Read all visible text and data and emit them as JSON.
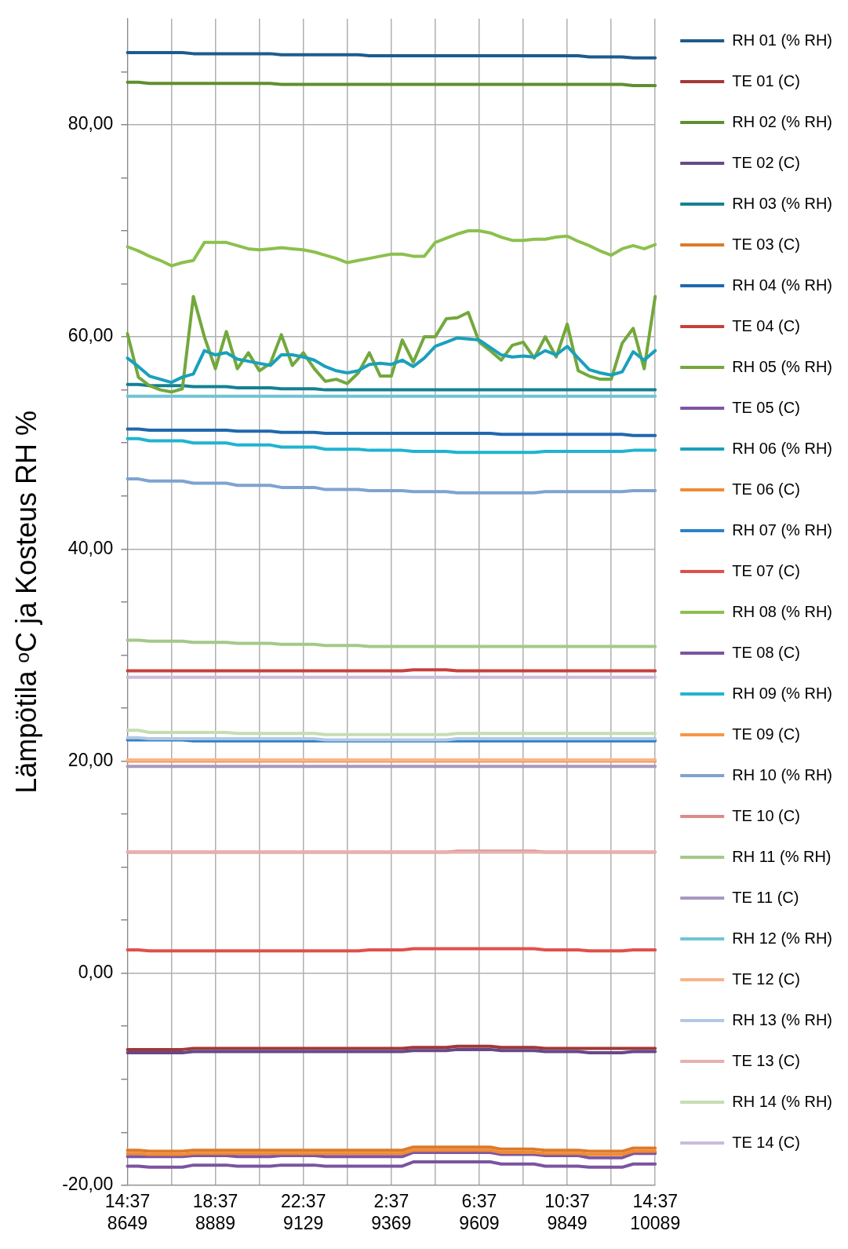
{
  "chart_data": {
    "type": "line",
    "ylabel": "Lämpötila ᵒC ja Kosteus RH %",
    "legend": "right",
    "grid": true,
    "categories": [
      "14:37\n8649",
      null,
      null,
      null,
      null,
      null,
      null,
      null,
      "18:37\n8889",
      null,
      null,
      null,
      null,
      null,
      null,
      null,
      "22:37\n9129",
      null,
      null,
      null,
      null,
      null,
      null,
      null,
      "2:37\n9369",
      null,
      null,
      null,
      null,
      null,
      null,
      null,
      "6:37\n9609",
      null,
      null,
      null,
      null,
      null,
      null,
      null,
      "10:37\n9849",
      null,
      null,
      null,
      null,
      null,
      null,
      null,
      "14:37\n10089"
    ],
    "ylim": [
      -20,
      90
    ],
    "yticks": [
      {
        "value": -20,
        "label": "-20,00"
      },
      {
        "value": -15,
        "label": null
      },
      {
        "value": -10,
        "label": null
      },
      {
        "value": -5,
        "label": null
      },
      {
        "value": 0,
        "label": "0,00"
      },
      {
        "value": 5,
        "label": null
      },
      {
        "value": 10,
        "label": null
      },
      {
        "value": 15,
        "label": null
      },
      {
        "value": 20,
        "label": "20,00"
      },
      {
        "value": 25,
        "label": null
      },
      {
        "value": 30,
        "label": null
      },
      {
        "value": 35,
        "label": null
      },
      {
        "value": 40,
        "label": "40,00"
      },
      {
        "value": 45,
        "label": null
      },
      {
        "value": 50,
        "label": null
      },
      {
        "value": 55,
        "label": null
      },
      {
        "value": 60,
        "label": "60,00"
      },
      {
        "value": 65,
        "label": null
      },
      {
        "value": 70,
        "label": null
      },
      {
        "value": 75,
        "label": null
      },
      {
        "value": 80,
        "label": "80,00"
      },
      {
        "value": 85,
        "label": null
      }
    ],
    "series": [
      {
        "name": "RH 01 (% RH)",
        "color": "#1f5b8c",
        "values": [
          86.8,
          86.8,
          86.8,
          86.8,
          86.8,
          86.8,
          86.7,
          86.7,
          86.7,
          86.7,
          86.7,
          86.7,
          86.7,
          86.7,
          86.6,
          86.6,
          86.6,
          86.6,
          86.6,
          86.6,
          86.6,
          86.6,
          86.5,
          86.5,
          86.5,
          86.5,
          86.5,
          86.5,
          86.5,
          86.5,
          86.5,
          86.5,
          86.5,
          86.5,
          86.5,
          86.5,
          86.5,
          86.5,
          86.5,
          86.5,
          86.5,
          86.5,
          86.4,
          86.4,
          86.4,
          86.4,
          86.3,
          86.3,
          86.3
        ]
      },
      {
        "name": "TE 01 (C)",
        "color": "#a33838",
        "values": [
          -7.2,
          -7.2,
          -7.2,
          -7.2,
          -7.2,
          -7.2,
          -7.1,
          -7.1,
          -7.1,
          -7.1,
          -7.1,
          -7.1,
          -7.1,
          -7.1,
          -7.1,
          -7.1,
          -7.1,
          -7.1,
          -7.1,
          -7.1,
          -7.1,
          -7.1,
          -7.1,
          -7.1,
          -7.1,
          -7.1,
          -7.0,
          -7.0,
          -7.0,
          -7.0,
          -6.9,
          -6.9,
          -6.9,
          -6.9,
          -7.0,
          -7.0,
          -7.0,
          -7.0,
          -7.1,
          -7.1,
          -7.1,
          -7.1,
          -7.1,
          -7.1,
          -7.1,
          -7.1,
          -7.1,
          -7.1,
          -7.1
        ]
      },
      {
        "name": "RH 02 (% RH)",
        "color": "#5f8f2f",
        "values": [
          84.0,
          84.0,
          83.9,
          83.9,
          83.9,
          83.9,
          83.9,
          83.9,
          83.9,
          83.9,
          83.9,
          83.9,
          83.9,
          83.9,
          83.8,
          83.8,
          83.8,
          83.8,
          83.8,
          83.8,
          83.8,
          83.8,
          83.8,
          83.8,
          83.8,
          83.8,
          83.8,
          83.8,
          83.8,
          83.8,
          83.8,
          83.8,
          83.8,
          83.8,
          83.8,
          83.8,
          83.8,
          83.8,
          83.8,
          83.8,
          83.8,
          83.8,
          83.8,
          83.8,
          83.8,
          83.8,
          83.7,
          83.7,
          83.7
        ]
      },
      {
        "name": "TE 02 (C)",
        "color": "#65498a",
        "values": [
          -7.5,
          -7.5,
          -7.5,
          -7.5,
          -7.5,
          -7.5,
          -7.4,
          -7.4,
          -7.4,
          -7.4,
          -7.4,
          -7.4,
          -7.4,
          -7.4,
          -7.4,
          -7.4,
          -7.4,
          -7.4,
          -7.4,
          -7.4,
          -7.4,
          -7.4,
          -7.4,
          -7.4,
          -7.4,
          -7.4,
          -7.3,
          -7.3,
          -7.3,
          -7.3,
          -7.2,
          -7.2,
          -7.2,
          -7.2,
          -7.3,
          -7.3,
          -7.3,
          -7.3,
          -7.4,
          -7.4,
          -7.4,
          -7.4,
          -7.5,
          -7.5,
          -7.5,
          -7.5,
          -7.4,
          -7.4,
          -7.4
        ]
      },
      {
        "name": "RH 03 (% RH)",
        "color": "#138192",
        "values": [
          55.5,
          55.5,
          55.4,
          55.4,
          55.4,
          55.4,
          55.3,
          55.3,
          55.3,
          55.3,
          55.2,
          55.2,
          55.2,
          55.2,
          55.1,
          55.1,
          55.1,
          55.1,
          55.0,
          55.0,
          55.0,
          55.0,
          55.0,
          55.0,
          55.0,
          55.0,
          55.0,
          55.0,
          55.0,
          55.0,
          55.0,
          55.0,
          55.0,
          55.0,
          55.0,
          55.0,
          55.0,
          55.0,
          55.0,
          55.0,
          55.0,
          55.0,
          55.0,
          55.0,
          55.0,
          55.0,
          55.0,
          55.0,
          55.0
        ]
      },
      {
        "name": "TE 03 (C)",
        "color": "#dd7a2a",
        "values": [
          -16.7,
          -16.7,
          -16.8,
          -16.8,
          -16.8,
          -16.8,
          -16.7,
          -16.7,
          -16.7,
          -16.7,
          -16.7,
          -16.7,
          -16.7,
          -16.7,
          -16.7,
          -16.7,
          -16.7,
          -16.7,
          -16.7,
          -16.7,
          -16.7,
          -16.7,
          -16.7,
          -16.7,
          -16.7,
          -16.7,
          -16.4,
          -16.4,
          -16.4,
          -16.4,
          -16.4,
          -16.4,
          -16.4,
          -16.4,
          -16.6,
          -16.6,
          -16.6,
          -16.6,
          -16.7,
          -16.7,
          -16.7,
          -16.7,
          -16.8,
          -16.8,
          -16.8,
          -16.8,
          -16.5,
          -16.5,
          -16.5
        ]
      },
      {
        "name": "RH 04 (% RH)",
        "color": "#2068ad",
        "values": [
          51.3,
          51.3,
          51.2,
          51.2,
          51.2,
          51.2,
          51.2,
          51.2,
          51.2,
          51.2,
          51.1,
          51.1,
          51.1,
          51.1,
          51.0,
          51.0,
          51.0,
          51.0,
          50.9,
          50.9,
          50.9,
          50.9,
          50.9,
          50.9,
          50.9,
          50.9,
          50.9,
          50.9,
          50.9,
          50.9,
          50.9,
          50.9,
          50.9,
          50.9,
          50.8,
          50.8,
          50.8,
          50.8,
          50.8,
          50.8,
          50.8,
          50.8,
          50.8,
          50.8,
          50.8,
          50.8,
          50.7,
          50.7,
          50.7
        ]
      },
      {
        "name": "TE 04 (C)",
        "color": "#c8403c",
        "values": [
          28.5,
          28.5,
          28.5,
          28.5,
          28.5,
          28.5,
          28.5,
          28.5,
          28.5,
          28.5,
          28.5,
          28.5,
          28.5,
          28.5,
          28.5,
          28.5,
          28.5,
          28.5,
          28.5,
          28.5,
          28.5,
          28.5,
          28.5,
          28.5,
          28.5,
          28.5,
          28.6,
          28.6,
          28.6,
          28.6,
          28.5,
          28.5,
          28.5,
          28.5,
          28.5,
          28.5,
          28.5,
          28.5,
          28.5,
          28.5,
          28.5,
          28.5,
          28.5,
          28.5,
          28.5,
          28.5,
          28.5,
          28.5,
          28.5
        ]
      },
      {
        "name": "RH 05 (% RH)",
        "color": "#72a83c",
        "values": [
          60.3,
          56.2,
          55.4,
          55.0,
          54.8,
          55.1,
          63.8,
          60.0,
          57.0,
          60.5,
          57.0,
          58.5,
          56.8,
          57.5,
          60.2,
          57.3,
          58.5,
          57.0,
          55.8,
          56.0,
          55.6,
          56.6,
          58.5,
          56.3,
          56.3,
          59.7,
          57.6,
          60.0,
          60.0,
          61.7,
          61.8,
          62.3,
          59.5,
          58.7,
          57.8,
          59.2,
          59.5,
          58.0,
          60.0,
          58.1,
          61.2,
          56.8,
          56.3,
          56.0,
          56.0,
          59.4,
          60.8,
          57.0,
          63.8
        ]
      },
      {
        "name": "TE 05 (C)",
        "color": "#7e55a3",
        "values": [
          -17.3,
          -17.3,
          -17.3,
          -17.3,
          -17.3,
          -17.3,
          -17.2,
          -17.2,
          -17.2,
          -17.2,
          -17.3,
          -17.3,
          -17.3,
          -17.3,
          -17.2,
          -17.2,
          -17.2,
          -17.2,
          -17.3,
          -17.3,
          -17.3,
          -17.3,
          -17.3,
          -17.3,
          -17.3,
          -17.3,
          -16.9,
          -16.9,
          -16.9,
          -16.9,
          -16.9,
          -16.9,
          -16.9,
          -16.9,
          -17.1,
          -17.1,
          -17.1,
          -17.1,
          -17.2,
          -17.2,
          -17.2,
          -17.2,
          -17.4,
          -17.4,
          -17.4,
          -17.4,
          -17.0,
          -17.0,
          -17.0
        ]
      },
      {
        "name": "RH 06 (% RH)",
        "color": "#1aa0bb",
        "values": [
          58.0,
          57.2,
          56.3,
          56.0,
          55.7,
          56.2,
          56.5,
          58.7,
          58.3,
          58.5,
          57.9,
          57.7,
          57.5,
          57.3,
          58.3,
          58.3,
          58.1,
          57.8,
          57.2,
          56.8,
          56.6,
          56.8,
          57.4,
          57.5,
          57.4,
          57.8,
          57.2,
          58.0,
          59.1,
          59.5,
          59.9,
          59.8,
          59.7,
          59.0,
          58.3,
          58.1,
          58.2,
          58.1,
          58.7,
          58.3,
          59.1,
          58.0,
          56.9,
          56.6,
          56.4,
          56.7,
          58.6,
          57.8,
          58.7
        ]
      },
      {
        "name": "TE 06 (C)",
        "color": "#f08a33",
        "values": [
          -17.0,
          -17.0,
          -17.1,
          -17.1,
          -17.1,
          -17.1,
          -17.0,
          -17.0,
          -17.0,
          -17.0,
          -17.0,
          -17.0,
          -17.0,
          -17.0,
          -17.0,
          -17.0,
          -17.0,
          -17.0,
          -17.0,
          -17.0,
          -17.0,
          -17.0,
          -17.0,
          -17.0,
          -17.0,
          -17.0,
          -16.7,
          -16.7,
          -16.7,
          -16.7,
          -16.7,
          -16.7,
          -16.7,
          -16.7,
          -16.9,
          -16.9,
          -16.9,
          -16.9,
          -17.0,
          -17.0,
          -17.0,
          -17.0,
          -17.1,
          -17.1,
          -17.1,
          -17.1,
          -16.8,
          -16.8,
          -16.8
        ]
      },
      {
        "name": "RH 07 (% RH)",
        "color": "#2c82c9",
        "values": [
          22.0,
          22.0,
          22.0,
          22.0,
          22.0,
          22.0,
          21.9,
          21.9,
          21.9,
          21.9,
          21.9,
          21.9,
          21.9,
          21.9,
          21.9,
          21.9,
          21.9,
          21.9,
          21.9,
          21.9,
          21.9,
          21.9,
          21.9,
          21.9,
          21.9,
          21.9,
          21.9,
          21.9,
          21.9,
          21.9,
          21.9,
          21.9,
          21.9,
          21.9,
          21.9,
          21.9,
          21.9,
          21.9,
          21.9,
          21.9,
          21.9,
          21.9,
          21.9,
          21.9,
          21.9,
          21.9,
          21.9,
          21.9,
          21.9
        ]
      },
      {
        "name": "TE 07 (C)",
        "color": "#e0504a",
        "values": [
          2.2,
          2.2,
          2.1,
          2.1,
          2.1,
          2.1,
          2.1,
          2.1,
          2.1,
          2.1,
          2.1,
          2.1,
          2.1,
          2.1,
          2.1,
          2.1,
          2.1,
          2.1,
          2.1,
          2.1,
          2.1,
          2.1,
          2.2,
          2.2,
          2.2,
          2.2,
          2.3,
          2.3,
          2.3,
          2.3,
          2.3,
          2.3,
          2.3,
          2.3,
          2.3,
          2.3,
          2.3,
          2.3,
          2.2,
          2.2,
          2.2,
          2.2,
          2.1,
          2.1,
          2.1,
          2.1,
          2.2,
          2.2,
          2.2
        ]
      },
      {
        "name": "RH 08 (% RH)",
        "color": "#8cc04d",
        "values": [
          68.5,
          68.1,
          67.6,
          67.2,
          66.7,
          67.0,
          67.2,
          68.9,
          68.9,
          68.9,
          68.6,
          68.3,
          68.2,
          68.3,
          68.4,
          68.3,
          68.2,
          68.0,
          67.7,
          67.4,
          67.0,
          67.2,
          67.4,
          67.6,
          67.8,
          67.8,
          67.6,
          67.6,
          68.9,
          69.3,
          69.7,
          70.0,
          70.0,
          69.8,
          69.4,
          69.1,
          69.1,
          69.2,
          69.2,
          69.4,
          69.5,
          69.0,
          68.6,
          68.1,
          67.7,
          68.3,
          68.6,
          68.3,
          68.7
        ]
      },
      {
        "name": "TE 08 (C)",
        "color": "#7b54a0",
        "values": [
          -18.2,
          -18.2,
          -18.3,
          -18.3,
          -18.3,
          -18.3,
          -18.1,
          -18.1,
          -18.1,
          -18.1,
          -18.2,
          -18.2,
          -18.2,
          -18.2,
          -18.1,
          -18.1,
          -18.1,
          -18.1,
          -18.2,
          -18.2,
          -18.2,
          -18.2,
          -18.2,
          -18.2,
          -18.2,
          -18.2,
          -17.8,
          -17.8,
          -17.8,
          -17.8,
          -17.8,
          -17.8,
          -17.8,
          -17.8,
          -18.0,
          -18.0,
          -18.0,
          -18.0,
          -18.2,
          -18.2,
          -18.2,
          -18.2,
          -18.3,
          -18.3,
          -18.3,
          -18.3,
          -18.0,
          -18.0,
          -18.0
        ]
      },
      {
        "name": "RH 09 (% RH)",
        "color": "#1fb4d0",
        "values": [
          50.4,
          50.4,
          50.2,
          50.2,
          50.2,
          50.2,
          50.0,
          50.0,
          50.0,
          50.0,
          49.8,
          49.8,
          49.8,
          49.8,
          49.6,
          49.6,
          49.6,
          49.6,
          49.4,
          49.4,
          49.4,
          49.4,
          49.3,
          49.3,
          49.3,
          49.3,
          49.2,
          49.2,
          49.2,
          49.2,
          49.1,
          49.1,
          49.1,
          49.1,
          49.1,
          49.1,
          49.1,
          49.1,
          49.2,
          49.2,
          49.2,
          49.2,
          49.2,
          49.2,
          49.2,
          49.2,
          49.3,
          49.3,
          49.3
        ]
      },
      {
        "name": "TE 09 (C)",
        "color": "#f79646",
        "values": [
          20.0,
          20.0,
          20.0,
          20.0,
          20.0,
          20.0,
          20.0,
          20.0,
          20.0,
          20.0,
          20.0,
          20.0,
          20.0,
          20.0,
          20.0,
          20.0,
          20.0,
          20.0,
          20.0,
          20.0,
          20.0,
          20.0,
          20.0,
          20.0,
          20.0,
          20.0,
          20.0,
          20.0,
          20.0,
          20.0,
          20.0,
          20.0,
          20.0,
          20.0,
          20.0,
          20.0,
          20.0,
          20.0,
          20.0,
          20.0,
          20.0,
          20.0,
          20.0,
          20.0,
          20.0,
          20.0,
          20.0,
          20.0,
          20.0
        ]
      },
      {
        "name": "RH 10 (% RH)",
        "color": "#7ea3d0",
        "values": [
          46.6,
          46.6,
          46.4,
          46.4,
          46.4,
          46.4,
          46.2,
          46.2,
          46.2,
          46.2,
          46.0,
          46.0,
          46.0,
          46.0,
          45.8,
          45.8,
          45.8,
          45.8,
          45.6,
          45.6,
          45.6,
          45.6,
          45.5,
          45.5,
          45.5,
          45.5,
          45.4,
          45.4,
          45.4,
          45.4,
          45.3,
          45.3,
          45.3,
          45.3,
          45.3,
          45.3,
          45.3,
          45.3,
          45.4,
          45.4,
          45.4,
          45.4,
          45.4,
          45.4,
          45.4,
          45.4,
          45.5,
          45.5,
          45.5
        ]
      },
      {
        "name": "TE 10 (C)",
        "color": "#de8a8a",
        "values": [
          11.4,
          11.4,
          11.4,
          11.4,
          11.4,
          11.4,
          11.4,
          11.4,
          11.4,
          11.4,
          11.4,
          11.4,
          11.4,
          11.4,
          11.4,
          11.4,
          11.4,
          11.4,
          11.4,
          11.4,
          11.4,
          11.4,
          11.4,
          11.4,
          11.4,
          11.4,
          11.4,
          11.4,
          11.4,
          11.4,
          11.5,
          11.5,
          11.5,
          11.5,
          11.5,
          11.5,
          11.5,
          11.5,
          11.4,
          11.4,
          11.4,
          11.4,
          11.4,
          11.4,
          11.4,
          11.4,
          11.4,
          11.4,
          11.4
        ]
      },
      {
        "name": "RH 11 (% RH)",
        "color": "#a3c98a",
        "values": [
          31.4,
          31.4,
          31.3,
          31.3,
          31.3,
          31.3,
          31.2,
          31.2,
          31.2,
          31.2,
          31.1,
          31.1,
          31.1,
          31.1,
          31.0,
          31.0,
          31.0,
          31.0,
          30.9,
          30.9,
          30.9,
          30.9,
          30.8,
          30.8,
          30.8,
          30.8,
          30.8,
          30.8,
          30.8,
          30.8,
          30.8,
          30.8,
          30.8,
          30.8,
          30.8,
          30.8,
          30.8,
          30.8,
          30.8,
          30.8,
          30.8,
          30.8,
          30.8,
          30.8,
          30.8,
          30.8,
          30.8,
          30.8,
          30.8
        ]
      },
      {
        "name": "TE 11 (C)",
        "color": "#a898c2",
        "values": [
          19.5,
          19.5,
          19.5,
          19.5,
          19.5,
          19.5,
          19.5,
          19.5,
          19.5,
          19.5,
          19.5,
          19.5,
          19.5,
          19.5,
          19.5,
          19.5,
          19.5,
          19.5,
          19.5,
          19.5,
          19.5,
          19.5,
          19.5,
          19.5,
          19.5,
          19.5,
          19.5,
          19.5,
          19.5,
          19.5,
          19.5,
          19.5,
          19.5,
          19.5,
          19.5,
          19.5,
          19.5,
          19.5,
          19.5,
          19.5,
          19.5,
          19.5,
          19.5,
          19.5,
          19.5,
          19.5,
          19.5,
          19.5,
          19.5
        ]
      },
      {
        "name": "RH 12 (% RH)",
        "color": "#70c4d4",
        "values": [
          54.4,
          54.4,
          54.4,
          54.4,
          54.4,
          54.4,
          54.4,
          54.4,
          54.4,
          54.4,
          54.4,
          54.4,
          54.4,
          54.4,
          54.4,
          54.4,
          54.4,
          54.4,
          54.4,
          54.4,
          54.4,
          54.4,
          54.4,
          54.4,
          54.4,
          54.4,
          54.4,
          54.4,
          54.4,
          54.4,
          54.4,
          54.4,
          54.4,
          54.4,
          54.4,
          54.4,
          54.4,
          54.4,
          54.4,
          54.4,
          54.4,
          54.4,
          54.4,
          54.4,
          54.4,
          54.4,
          54.4,
          54.4,
          54.4
        ]
      },
      {
        "name": "TE 12 (C)",
        "color": "#f9b38a",
        "values": [
          20.1,
          20.1,
          20.1,
          20.1,
          20.1,
          20.1,
          20.1,
          20.1,
          20.1,
          20.1,
          20.1,
          20.1,
          20.1,
          20.1,
          20.1,
          20.1,
          20.1,
          20.1,
          20.1,
          20.1,
          20.1,
          20.1,
          20.1,
          20.1,
          20.1,
          20.1,
          20.1,
          20.1,
          20.1,
          20.1,
          20.1,
          20.1,
          20.1,
          20.1,
          20.1,
          20.1,
          20.1,
          20.1,
          20.1,
          20.1,
          20.1,
          20.1,
          20.1,
          20.1,
          20.1,
          20.1,
          20.1,
          20.1,
          20.1
        ]
      },
      {
        "name": "RH 13 (% RH)",
        "color": "#b3c8e3",
        "values": [
          22.2,
          22.2,
          22.1,
          22.1,
          22.1,
          22.1,
          22.1,
          22.1,
          22.1,
          22.1,
          22.1,
          22.1,
          22.1,
          22.1,
          22.1,
          22.1,
          22.1,
          22.1,
          22.0,
          22.0,
          22.0,
          22.0,
          22.0,
          22.0,
          22.0,
          22.0,
          22.0,
          22.0,
          22.0,
          22.0,
          22.1,
          22.1,
          22.1,
          22.1,
          22.1,
          22.1,
          22.1,
          22.1,
          22.1,
          22.1,
          22.1,
          22.1,
          22.1,
          22.1,
          22.1,
          22.1,
          22.1,
          22.1,
          22.1
        ]
      },
      {
        "name": "TE 13 (C)",
        "color": "#e8b0b0",
        "values": [
          11.4,
          11.4,
          11.4,
          11.4,
          11.4,
          11.4,
          11.4,
          11.4,
          11.4,
          11.4,
          11.4,
          11.4,
          11.4,
          11.4,
          11.4,
          11.4,
          11.4,
          11.4,
          11.4,
          11.4,
          11.4,
          11.4,
          11.4,
          11.4,
          11.4,
          11.4,
          11.4,
          11.4,
          11.4,
          11.4,
          11.4,
          11.4,
          11.4,
          11.4,
          11.4,
          11.4,
          11.4,
          11.4,
          11.4,
          11.4,
          11.4,
          11.4,
          11.4,
          11.4,
          11.4,
          11.4,
          11.4,
          11.4,
          11.4
        ]
      },
      {
        "name": "RH 14 (% RH)",
        "color": "#c4deb2",
        "values": [
          22.9,
          22.9,
          22.7,
          22.7,
          22.7,
          22.7,
          22.7,
          22.7,
          22.7,
          22.7,
          22.6,
          22.6,
          22.6,
          22.6,
          22.6,
          22.6,
          22.6,
          22.6,
          22.5,
          22.5,
          22.5,
          22.5,
          22.5,
          22.5,
          22.5,
          22.5,
          22.5,
          22.5,
          22.5,
          22.5,
          22.6,
          22.6,
          22.6,
          22.6,
          22.6,
          22.6,
          22.6,
          22.6,
          22.6,
          22.6,
          22.6,
          22.6,
          22.6,
          22.6,
          22.6,
          22.6,
          22.6,
          22.6,
          22.6
        ]
      },
      {
        "name": "TE 14 (C)",
        "color": "#c9bcdc",
        "values": [
          27.9,
          27.9,
          27.9,
          27.9,
          27.9,
          27.9,
          27.9,
          27.9,
          27.9,
          27.9,
          27.9,
          27.9,
          27.9,
          27.9,
          27.9,
          27.9,
          27.9,
          27.9,
          27.9,
          27.9,
          27.9,
          27.9,
          27.9,
          27.9,
          27.9,
          27.9,
          27.9,
          27.9,
          27.9,
          27.9,
          27.9,
          27.9,
          27.9,
          27.9,
          27.9,
          27.9,
          27.9,
          27.9,
          27.9,
          27.9,
          27.9,
          27.9,
          27.9,
          27.9,
          27.9,
          27.9,
          27.9,
          27.9,
          27.9
        ]
      }
    ]
  }
}
